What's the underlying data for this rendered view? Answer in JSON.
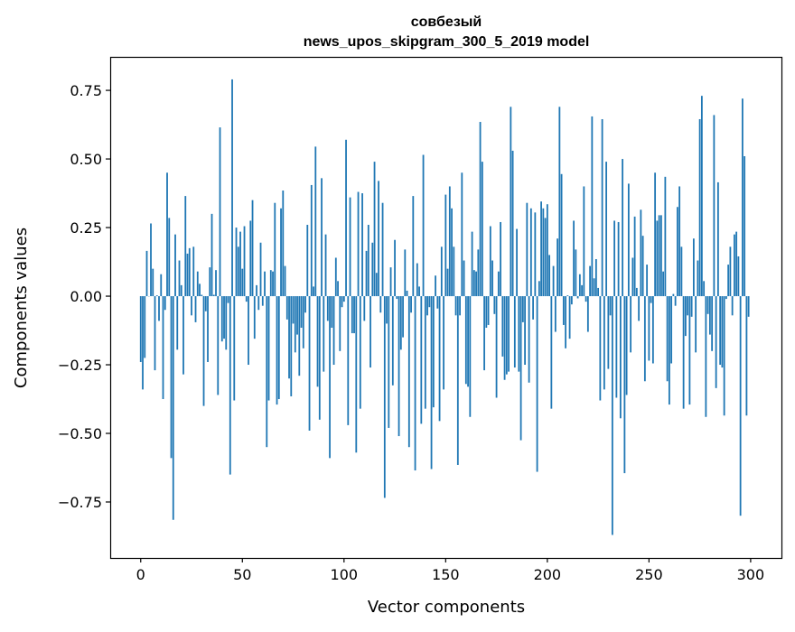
{
  "chart_data": {
    "type": "bar",
    "title": [
      "совбезый",
      "news_upos_skipgram_300_5_2019 model"
    ],
    "xlabel": "Vector components",
    "ylabel": "Components values",
    "xlim": [
      -15,
      315.6
    ],
    "ylim": [
      -0.954,
      0.872
    ],
    "xticks": [
      0,
      50,
      100,
      150,
      200,
      250,
      300
    ],
    "xtick_labels": [
      "0",
      "50",
      "100",
      "150",
      "200",
      "250",
      "300"
    ],
    "yticks": [
      -0.75,
      -0.5,
      -0.25,
      0,
      0.25,
      0.5,
      0.75
    ],
    "ytick_labels": [
      "−0.75",
      "−0.50",
      "−0.25",
      "0.00",
      "0.25",
      "0.50",
      "0.75"
    ],
    "grid": false,
    "bar_color": "#1f77b4",
    "values": [
      -0.24,
      -0.34,
      -0.225,
      0.165,
      0.0,
      0.265,
      0.1,
      -0.27,
      0.003,
      -0.09,
      0.08,
      -0.375,
      -0.05,
      0.45,
      0.285,
      -0.59,
      -0.815,
      0.225,
      -0.195,
      0.13,
      0.04,
      -0.285,
      0.365,
      0.155,
      0.175,
      -0.07,
      0.18,
      -0.095,
      0.09,
      0.045,
      0.005,
      -0.4,
      -0.055,
      -0.24,
      0.105,
      0.3,
      0.005,
      0.095,
      -0.36,
      0.615,
      -0.165,
      -0.155,
      -0.195,
      -0.025,
      -0.65,
      0.79,
      -0.38,
      0.25,
      0.18,
      0.235,
      0.1,
      0.255,
      -0.02,
      -0.25,
      0.275,
      0.35,
      -0.155,
      0.04,
      -0.05,
      0.195,
      -0.035,
      0.09,
      -0.55,
      -0.38,
      0.095,
      0.09,
      0.34,
      -0.395,
      -0.375,
      0.32,
      0.385,
      0.11,
      -0.085,
      -0.3,
      -0.365,
      -0.1,
      -0.205,
      -0.14,
      -0.29,
      -0.115,
      -0.19,
      -0.06,
      0.26,
      -0.49,
      0.405,
      0.035,
      0.545,
      -0.33,
      -0.45,
      0.43,
      -0.275,
      0.225,
      -0.09,
      -0.59,
      -0.115,
      -0.25,
      0.14,
      0.055,
      -0.2,
      -0.04,
      -0.02,
      0.57,
      -0.47,
      0.36,
      -0.135,
      -0.135,
      -0.57,
      0.38,
      -0.41,
      0.375,
      -0.09,
      0.165,
      0.26,
      -0.26,
      0.195,
      0.49,
      0.085,
      0.42,
      -0.06,
      0.34,
      -0.735,
      -0.1,
      -0.48,
      0.105,
      -0.325,
      0.205,
      -0.01,
      -0.51,
      -0.195,
      -0.15,
      0.17,
      0.02,
      -0.55,
      -0.06,
      0.365,
      -0.635,
      0.12,
      0.035,
      -0.465,
      0.515,
      -0.41,
      -0.07,
      -0.04,
      -0.63,
      -0.405,
      0.075,
      -0.045,
      -0.455,
      0.18,
      -0.34,
      0.37,
      0.1,
      0.4,
      0.32,
      0.18,
      -0.07,
      -0.615,
      -0.07,
      0.45,
      0.13,
      -0.32,
      -0.33,
      -0.44,
      0.235,
      0.095,
      0.09,
      0.17,
      0.635,
      0.49,
      -0.27,
      -0.115,
      -0.105,
      0.255,
      0.13,
      -0.065,
      -0.37,
      0.09,
      0.27,
      -0.22,
      -0.305,
      -0.285,
      -0.275,
      0.69,
      0.53,
      -0.26,
      0.245,
      -0.275,
      -0.525,
      -0.095,
      -0.25,
      0.34,
      -0.315,
      0.32,
      -0.085,
      0.305,
      -0.64,
      0.055,
      0.345,
      0.32,
      0.285,
      0.335,
      0.15,
      -0.41,
      0.11,
      -0.13,
      0.21,
      0.69,
      0.445,
      -0.105,
      -0.19,
      0.003,
      -0.155,
      -0.03,
      0.275,
      0.17,
      -0.008,
      0.08,
      0.04,
      0.4,
      -0.02,
      -0.13,
      0.11,
      0.655,
      0.065,
      0.135,
      0.03,
      -0.38,
      0.645,
      -0.34,
      0.49,
      -0.265,
      -0.07,
      -0.87,
      0.275,
      -0.37,
      0.27,
      -0.445,
      0.5,
      -0.645,
      -0.36,
      0.41,
      -0.205,
      0.14,
      0.29,
      0.03,
      -0.09,
      0.315,
      0.22,
      -0.31,
      0.115,
      -0.235,
      -0.025,
      -0.245,
      0.45,
      0.275,
      0.295,
      0.295,
      0.09,
      0.435,
      -0.31,
      -0.395,
      -0.245,
      0.008,
      -0.035,
      0.325,
      0.4,
      0.18,
      -0.41,
      -0.145,
      -0.07,
      -0.395,
      -0.075,
      0.21,
      -0.205,
      0.13,
      0.645,
      0.73,
      0.055,
      -0.44,
      -0.065,
      -0.14,
      -0.2,
      0.66,
      -0.335,
      0.415,
      -0.25,
      -0.26,
      -0.435,
      -0.01,
      0.115,
      0.18,
      -0.07,
      0.225,
      0.235,
      0.145,
      -0.8,
      0.72,
      0.51,
      -0.435,
      -0.075
    ]
  }
}
